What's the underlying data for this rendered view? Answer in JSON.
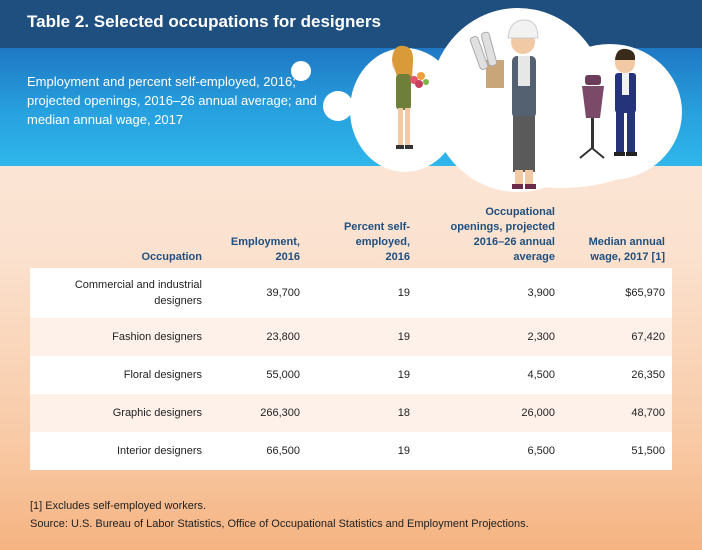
{
  "title": "Table 2. Selected occupations for designers",
  "subtitle": "Employment and percent self-employed, 2016; projected openings, 2016–26 annual average; and median annual wage, 2017",
  "columns": [
    "Occupation",
    "Employment, 2016",
    "Percent self-employed, 2016",
    "Occupational openings, projected 2016–26 annual average",
    "Median annual wage, 2017 [1]"
  ],
  "rows": [
    [
      "Commercial and industrial designers",
      "39,700",
      "19",
      "3,900",
      "$65,970"
    ],
    [
      "Fashion designers",
      "23,800",
      "19",
      "2,300",
      "67,420"
    ],
    [
      "Floral designers",
      "55,000",
      "19",
      "4,500",
      "26,350"
    ],
    [
      "Graphic designers",
      "266,300",
      "18",
      "26,000",
      "48,700"
    ],
    [
      "Interior designers",
      "66,500",
      "19",
      "6,500",
      "51,500"
    ]
  ],
  "footnote": "[1] Excludes self-employed workers.",
  "source": "Source: U.S. Bureau of Labor Statistics, Office of Occupational Statistics and Employment Projections.",
  "colors": {
    "title_bar": "#1f4f7f",
    "band": "#27a1df",
    "header_text": "#1f4f7f"
  },
  "illustration": [
    "floral-designer-figure",
    "industrial-designer-figure",
    "fashion-designer-figure"
  ]
}
